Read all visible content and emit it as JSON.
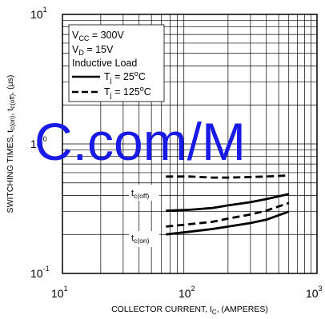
{
  "chart_data": {
    "type": "line",
    "xscale": "log",
    "yscale": "log",
    "xlim": [
      10,
      1000
    ],
    "ylim": [
      0.1,
      10
    ],
    "grid": true,
    "xlabel": {
      "main": "COLLECTOR CURRENT, I",
      "sub": "C",
      "suffix": ", (AMPERES)"
    },
    "ylabel": "SWITCHING TIMES, t(on), t(off), (µs)",
    "x_ticks": [
      {
        "base": "10",
        "exp": "1"
      },
      {
        "base": "10",
        "exp": "2"
      },
      {
        "base": "10",
        "exp": "3"
      }
    ],
    "y_ticks": [
      {
        "base": "10",
        "exp": "-1"
      },
      {
        "base": "10",
        "exp": "0"
      },
      {
        "base": "10",
        "exp": "1"
      }
    ],
    "conditions": [
      "V(CC) = 300V",
      "V(D) = 15V",
      "Inductive Load"
    ],
    "legend": [
      {
        "label": "T(j) = 25°C",
        "style": "solid"
      },
      {
        "label": "T(j) = 125°C",
        "style": "dashed"
      }
    ],
    "annotations": [
      "t(c(off))",
      "t(c(on))"
    ],
    "series": [
      {
        "name": "T(j) = 25°C",
        "group": "t(c(off))",
        "style": "solid",
        "x": [
          65,
          100,
          150,
          200,
          300,
          400,
          600
        ],
        "y": [
          0.305,
          0.31,
          0.32,
          0.335,
          0.355,
          0.375,
          0.41
        ]
      },
      {
        "name": "T(j) = 125°C",
        "group": "t(c(off))",
        "style": "dashed",
        "x": [
          65,
          100,
          150,
          200,
          300,
          400,
          600
        ],
        "y": [
          0.56,
          0.56,
          0.55,
          0.55,
          0.555,
          0.56,
          0.57
        ]
      },
      {
        "name": "T(j) = 25°C",
        "group": "t(c(on))",
        "style": "solid",
        "x": [
          65,
          100,
          150,
          200,
          300,
          400,
          600
        ],
        "y": [
          0.2,
          0.21,
          0.22,
          0.23,
          0.245,
          0.26,
          0.3
        ]
      },
      {
        "name": "T(j) = 125°C",
        "group": "t(c(on))",
        "style": "dashed",
        "x": [
          65,
          100,
          150,
          200,
          300,
          400,
          600
        ],
        "y": [
          0.23,
          0.24,
          0.25,
          0.265,
          0.285,
          0.305,
          0.35
        ]
      }
    ]
  },
  "watermark": "C.com/M"
}
